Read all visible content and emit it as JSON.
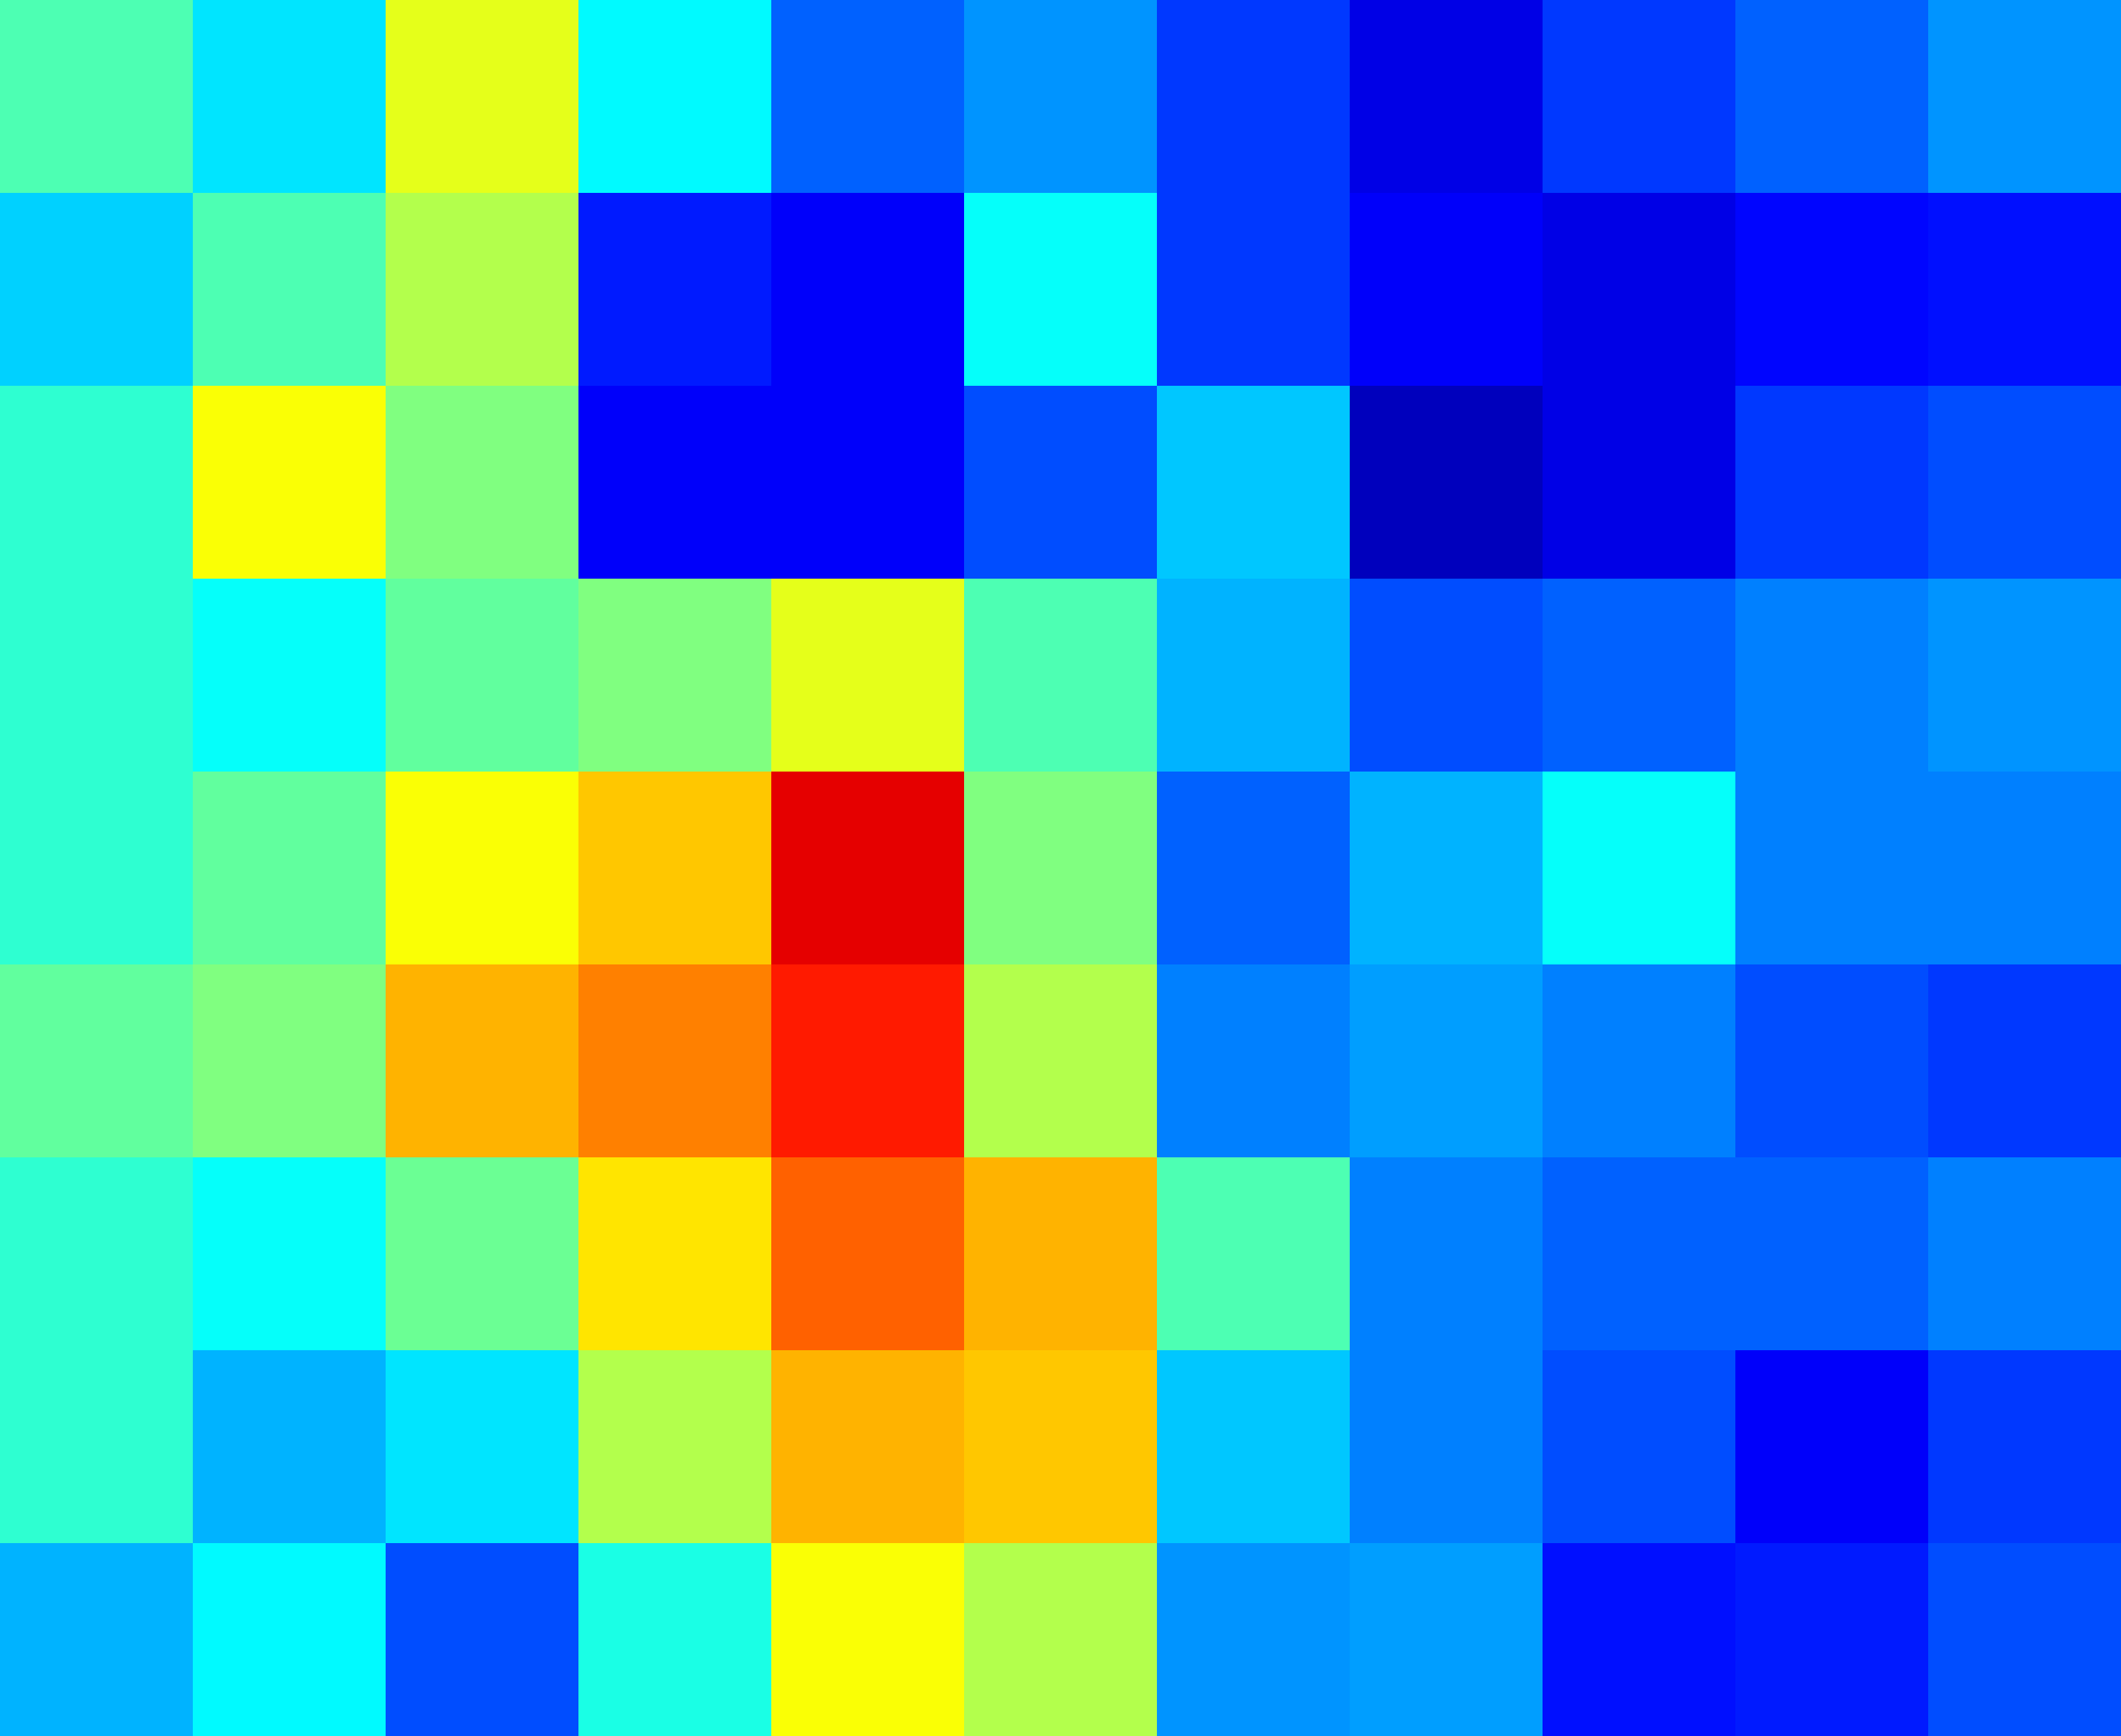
{
  "chart_data": {
    "type": "heatmap",
    "colormap": "jet",
    "vlim": [
      0,
      1
    ],
    "z": [
      [
        0.45,
        0.35,
        0.6,
        0.37,
        0.22,
        0.27,
        0.18,
        0.1,
        0.18,
        0.22,
        0.27
      ],
      [
        0.33,
        0.45,
        0.55,
        0.15,
        0.12,
        0.38,
        0.18,
        0.12,
        0.1,
        0.13,
        0.14
      ],
      [
        0.42,
        0.62,
        0.5,
        0.12,
        0.12,
        0.2,
        0.32,
        0.06,
        0.1,
        0.18,
        0.2
      ],
      [
        0.42,
        0.38,
        0.47,
        0.5,
        0.6,
        0.45,
        0.3,
        0.2,
        0.22,
        0.25,
        0.27
      ],
      [
        0.42,
        0.47,
        0.62,
        0.68,
        0.9,
        0.5,
        0.22,
        0.3,
        0.38,
        0.25,
        0.25
      ],
      [
        0.47,
        0.5,
        0.7,
        0.75,
        0.85,
        0.55,
        0.25,
        0.28,
        0.25,
        0.2,
        0.18
      ],
      [
        0.42,
        0.38,
        0.48,
        0.65,
        0.78,
        0.7,
        0.45,
        0.25,
        0.22,
        0.22,
        0.25
      ],
      [
        0.42,
        0.3,
        0.35,
        0.55,
        0.7,
        0.68,
        0.32,
        0.25,
        0.2,
        0.12,
        0.18
      ],
      [
        0.3,
        0.37,
        0.2,
        0.4,
        0.62,
        0.55,
        0.27,
        0.28,
        0.14,
        0.15,
        0.2
      ]
    ]
  }
}
